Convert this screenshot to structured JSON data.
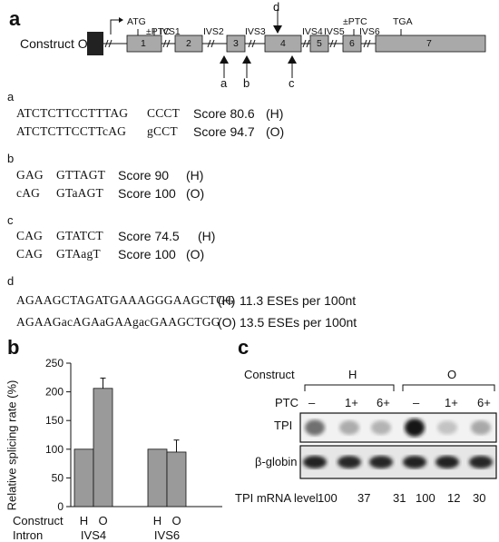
{
  "panel_a": {
    "letter": "a",
    "construct_label": "Construct O",
    "markers": {
      "atg": "ATG",
      "ptc1": "±PTC",
      "ptc2": "±PTC",
      "tga": "TGA"
    },
    "exons": [
      "1",
      "2",
      "3",
      "4",
      "5",
      "6",
      "7"
    ],
    "introns": [
      "IVS1",
      "IVS2",
      "IVS3",
      "IVS4",
      "IVS5",
      "IVS6"
    ],
    "arrows": {
      "a": "a",
      "b": "b",
      "c": "c",
      "d": "d"
    },
    "subpanels": [
      {
        "letter": "a",
        "rows": [
          {
            "seq1": "ATCTCTTCCTTTAG",
            "seq2": "CCCT",
            "score": "Score 80.6",
            "tag": "(H)"
          },
          {
            "seq1": "ATCTCTTCCTTcAG",
            "seq2": "gCCT",
            "score": "Score 94.7",
            "tag": "(O)"
          }
        ]
      },
      {
        "letter": "b",
        "rows": [
          {
            "seq1": "GAG",
            "seq2": "GTTAGT",
            "score": "Score 90",
            "tag": "(H)"
          },
          {
            "seq1": "cAG",
            "seq2": "GTaAGT",
            "score": "Score 100",
            "tag": "(O)"
          }
        ]
      },
      {
        "letter": "c",
        "rows": [
          {
            "seq1": "CAG",
            "seq2": "GTATCT",
            "score": "Score 74.5",
            "tag": "(H)"
          },
          {
            "seq1": "CAG",
            "seq2": "GTAagT",
            "score": "Score 100",
            "tag": "(O)"
          }
        ]
      },
      {
        "letter": "d",
        "rows": [
          {
            "seq": "AGAAGCTAGATGAAAGGGAAGCTGG",
            "tag": "(H)",
            "ese": "11.3 ESEs per 100nt"
          },
          {
            "seq": "AGAAGacAGAaGAAgacGAAGCTGG",
            "tag": "(O)",
            "ese": "13.5 ESEs per 100nt"
          }
        ]
      }
    ]
  },
  "panel_b": {
    "letter": "b",
    "ylabel": "Relative splicing rate (%)",
    "row_label_construct": "Construct",
    "row_label_intron": "Intron",
    "chart_data": {
      "type": "bar",
      "ylabel": "Relative splicing rate (%)",
      "ylim": [
        0,
        250
      ],
      "yticks": [
        "0",
        "50",
        "100",
        "150",
        "200",
        "250"
      ],
      "groups": [
        {
          "intron": "IVS4",
          "bars": [
            {
              "construct": "H",
              "value": 100,
              "error": 0
            },
            {
              "construct": "O",
              "value": 206,
              "error": 18
            }
          ]
        },
        {
          "intron": "IVS6",
          "bars": [
            {
              "construct": "H",
              "value": 100,
              "error": 0
            },
            {
              "construct": "O",
              "value": 95,
              "error": 21
            }
          ]
        }
      ],
      "bar_color": "#9a9a9a",
      "grid": false
    }
  },
  "panel_c": {
    "letter": "c",
    "construct_label": "Construct",
    "groups": [
      "H",
      "O"
    ],
    "ptc_label": "PTC",
    "ptc_values": [
      "–",
      "1+",
      "6+",
      "–",
      "1+",
      "6+"
    ],
    "tpi_label": "TPI",
    "globin_label": "β-globin",
    "mrna_label": "TPI mRNA level",
    "mrna_values": [
      "100",
      "37",
      "31",
      "100",
      "12",
      "30"
    ],
    "tpi_band_intensity": [
      0.55,
      0.28,
      0.25,
      0.95,
      0.18,
      0.3
    ],
    "globin_band_intensity": [
      0.9,
      0.88,
      0.88,
      0.9,
      0.9,
      0.88
    ]
  }
}
